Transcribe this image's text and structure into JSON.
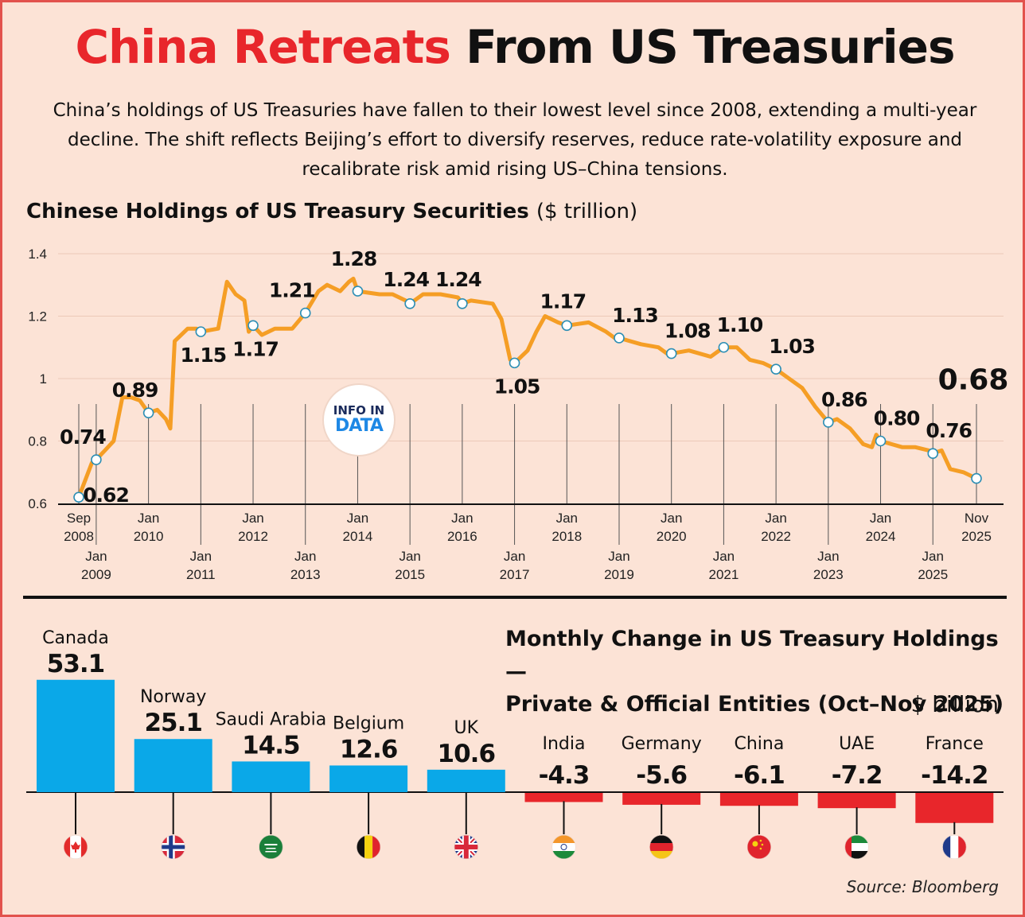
{
  "header": {
    "title_red": "China Retreats",
    "title_black": "From US Treasuries",
    "intro": "China’s holdings of US Treasuries have fallen to their lowest level since 2008, extending a multi-year decline. The shift reflects Beijing’s effort to diversify reserves, reduce rate-volatility exposure and recalibrate risk amid rising US–China tensions."
  },
  "line_section": {
    "title": "Chinese Holdings of US Treasury Securities",
    "unit": "($ trillion)"
  },
  "logo": {
    "line1": "INFO IN",
    "line2": "DATA"
  },
  "bar_section": {
    "title_line1": "Monthly Change in US Treasury Holdings —",
    "title_line2": "Private & Official Entities (Oct–Nov 2025)",
    "unit": "$ billion"
  },
  "source": "Source: Bloomberg",
  "colors": {
    "accent_red": "#e8262b",
    "line_orange": "#f59e25",
    "bar_blue": "#0aa8e8",
    "bar_red": "#e8262b",
    "background": "#fce3d6"
  },
  "chart_data": [
    {
      "type": "line",
      "title": "Chinese Holdings of US Treasury Securities",
      "ylabel": "($ trillion)",
      "ylim": [
        0.6,
        1.4
      ],
      "yticks": [
        "0.6",
        "0.8",
        "1",
        "1.2",
        "1.4"
      ],
      "grid": true,
      "x_ticks": [
        {
          "date": "2008-09",
          "line1": "Sep",
          "line2": "2008",
          "row": 1
        },
        {
          "date": "2009-01",
          "line1": "Jan",
          "line2": "2009",
          "row": 2
        },
        {
          "date": "2010-01",
          "line1": "Jan",
          "line2": "2010",
          "row": 1
        },
        {
          "date": "2011-01",
          "line1": "Jan",
          "line2": "2011",
          "row": 2
        },
        {
          "date": "2012-01",
          "line1": "Jan",
          "line2": "2012",
          "row": 1
        },
        {
          "date": "2013-01",
          "line1": "Jan",
          "line2": "2013",
          "row": 2
        },
        {
          "date": "2014-01",
          "line1": "Jan",
          "line2": "2014",
          "row": 1
        },
        {
          "date": "2015-01",
          "line1": "Jan",
          "line2": "2015",
          "row": 2
        },
        {
          "date": "2016-01",
          "line1": "Jan",
          "line2": "2016",
          "row": 1
        },
        {
          "date": "2017-01",
          "line1": "Jan",
          "line2": "2017",
          "row": 2
        },
        {
          "date": "2018-01",
          "line1": "Jan",
          "line2": "2018",
          "row": 1
        },
        {
          "date": "2019-01",
          "line1": "Jan",
          "line2": "2019",
          "row": 2
        },
        {
          "date": "2020-01",
          "line1": "Jan",
          "line2": "2020",
          "row": 1
        },
        {
          "date": "2021-01",
          "line1": "Jan",
          "line2": "2021",
          "row": 2
        },
        {
          "date": "2022-01",
          "line1": "Jan",
          "line2": "2022",
          "row": 1
        },
        {
          "date": "2023-01",
          "line1": "Jan",
          "line2": "2023",
          "row": 2
        },
        {
          "date": "2024-01",
          "line1": "Jan",
          "line2": "2024",
          "row": 1
        },
        {
          "date": "2025-01",
          "line1": "Jan",
          "line2": "2025",
          "row": 2
        },
        {
          "date": "2025-11",
          "line1": "Nov",
          "line2": "2025",
          "row": 1
        }
      ],
      "series": [
        {
          "points": [
            [
              "2008-09",
              0.62
            ],
            [
              "2008-12",
              0.73
            ],
            [
              "2009-01",
              0.74
            ],
            [
              "2009-03",
              0.77
            ],
            [
              "2009-05",
              0.8
            ],
            [
              "2009-07",
              0.94
            ],
            [
              "2009-09",
              0.94
            ],
            [
              "2009-11",
              0.93
            ],
            [
              "2010-01",
              0.89
            ],
            [
              "2010-03",
              0.9
            ],
            [
              "2010-05",
              0.87
            ],
            [
              "2010-06",
              0.84
            ],
            [
              "2010-07",
              1.12
            ],
            [
              "2010-10",
              1.16
            ],
            [
              "2010-12",
              1.16
            ],
            [
              "2011-01",
              1.15
            ],
            [
              "2011-05",
              1.16
            ],
            [
              "2011-07",
              1.31
            ],
            [
              "2011-09",
              1.27
            ],
            [
              "2011-11",
              1.25
            ],
            [
              "2011-12",
              1.15
            ],
            [
              "2012-01",
              1.17
            ],
            [
              "2012-03",
              1.14
            ],
            [
              "2012-06",
              1.16
            ],
            [
              "2012-10",
              1.16
            ],
            [
              "2013-01",
              1.21
            ],
            [
              "2013-04",
              1.28
            ],
            [
              "2013-06",
              1.3
            ],
            [
              "2013-09",
              1.28
            ],
            [
              "2013-11",
              1.31
            ],
            [
              "2013-12",
              1.32
            ],
            [
              "2014-01",
              1.28
            ],
            [
              "2014-06",
              1.27
            ],
            [
              "2014-09",
              1.27
            ],
            [
              "2014-12",
              1.25
            ],
            [
              "2015-01",
              1.24
            ],
            [
              "2015-04",
              1.27
            ],
            [
              "2015-08",
              1.27
            ],
            [
              "2015-12",
              1.26
            ],
            [
              "2016-01",
              1.24
            ],
            [
              "2016-03",
              1.25
            ],
            [
              "2016-08",
              1.24
            ],
            [
              "2016-10",
              1.19
            ],
            [
              "2016-12",
              1.06
            ],
            [
              "2017-01",
              1.05
            ],
            [
              "2017-04",
              1.09
            ],
            [
              "2017-06",
              1.15
            ],
            [
              "2017-08",
              1.2
            ],
            [
              "2017-11",
              1.18
            ],
            [
              "2018-01",
              1.17
            ],
            [
              "2018-06",
              1.18
            ],
            [
              "2018-10",
              1.15
            ],
            [
              "2018-12",
              1.13
            ],
            [
              "2019-01",
              1.13
            ],
            [
              "2019-06",
              1.11
            ],
            [
              "2019-10",
              1.1
            ],
            [
              "2019-12",
              1.08
            ],
            [
              "2020-01",
              1.08
            ],
            [
              "2020-05",
              1.09
            ],
            [
              "2020-10",
              1.07
            ],
            [
              "2021-01",
              1.1
            ],
            [
              "2021-04",
              1.1
            ],
            [
              "2021-07",
              1.06
            ],
            [
              "2021-10",
              1.05
            ],
            [
              "2022-01",
              1.03
            ],
            [
              "2022-04",
              1.0
            ],
            [
              "2022-07",
              0.97
            ],
            [
              "2022-10",
              0.91
            ],
            [
              "2023-01",
              0.86
            ],
            [
              "2023-03",
              0.87
            ],
            [
              "2023-06",
              0.84
            ],
            [
              "2023-09",
              0.79
            ],
            [
              "2023-11",
              0.78
            ],
            [
              "2023-12",
              0.82
            ],
            [
              "2024-01",
              0.8
            ],
            [
              "2024-06",
              0.78
            ],
            [
              "2024-09",
              0.78
            ],
            [
              "2024-12",
              0.77
            ],
            [
              "2025-01",
              0.76
            ],
            [
              "2025-03",
              0.77
            ],
            [
              "2025-05",
              0.71
            ],
            [
              "2025-08",
              0.7
            ],
            [
              "2025-11",
              0.68
            ]
          ]
        }
      ],
      "annotations": [
        {
          "date": "2008-09",
          "value": 0.62,
          "label": "0.62",
          "pos": "right"
        },
        {
          "date": "2009-01",
          "value": 0.74,
          "label": "0.74",
          "pos": "above-left"
        },
        {
          "date": "2010-01",
          "value": 0.89,
          "label": "0.89",
          "pos": "above-left"
        },
        {
          "date": "2011-01",
          "value": 1.15,
          "label": "1.15",
          "pos": "below"
        },
        {
          "date": "2012-01",
          "value": 1.17,
          "label": "1.17",
          "pos": "below"
        },
        {
          "date": "2013-01",
          "value": 1.21,
          "label": "1.21",
          "pos": "above-left"
        },
        {
          "date": "2014-01",
          "value": 1.28,
          "label": "1.28",
          "pos": "above-high"
        },
        {
          "date": "2015-01",
          "value": 1.24,
          "label": "1.24",
          "pos": "above"
        },
        {
          "date": "2016-01",
          "value": 1.24,
          "label": "1.24",
          "pos": "above"
        },
        {
          "date": "2017-01",
          "value": 1.05,
          "label": "1.05",
          "pos": "below"
        },
        {
          "date": "2018-01",
          "value": 1.17,
          "label": "1.17",
          "pos": "above"
        },
        {
          "date": "2019-01",
          "value": 1.13,
          "label": "1.13",
          "pos": "above-right"
        },
        {
          "date": "2020-01",
          "value": 1.08,
          "label": "1.08",
          "pos": "above-right"
        },
        {
          "date": "2021-01",
          "value": 1.1,
          "label": "1.10",
          "pos": "above-right"
        },
        {
          "date": "2022-01",
          "value": 1.03,
          "label": "1.03",
          "pos": "above-right"
        },
        {
          "date": "2023-01",
          "value": 0.86,
          "label": "0.86",
          "pos": "above-right"
        },
        {
          "date": "2024-01",
          "value": 0.8,
          "label": "0.80",
          "pos": "above-right"
        },
        {
          "date": "2025-01",
          "value": 0.76,
          "label": "0.76",
          "pos": "above-right"
        },
        {
          "date": "2025-11",
          "value": 0.68,
          "label": "0.68",
          "pos": "big"
        }
      ]
    },
    {
      "type": "bar",
      "title": "Monthly Change in US Treasury Holdings — Private & Official Entities (Oct–Nov 2025)",
      "ylabel": "$ billion",
      "categories": [
        "Canada",
        "Norway",
        "Saudi Arabia",
        "Belgium",
        "UK",
        "India",
        "Germany",
        "China",
        "UAE",
        "France"
      ],
      "values": [
        53.1,
        25.1,
        14.5,
        12.6,
        10.6,
        -4.3,
        -5.6,
        -6.1,
        -7.2,
        -14.2
      ],
      "value_labels": [
        "53.1",
        "25.1",
        "14.5",
        "12.6",
        "10.6",
        "-4.3",
        "-5.6",
        "-6.1",
        "-7.2",
        "-14.2"
      ],
      "flags": [
        "canada-flag-icon",
        "norway-flag-icon",
        "saudi-arabia-flag-icon",
        "belgium-flag-icon",
        "uk-flag-icon",
        "india-flag-icon",
        "germany-flag-icon",
        "china-flag-icon",
        "uae-flag-icon",
        "france-flag-icon"
      ]
    }
  ]
}
